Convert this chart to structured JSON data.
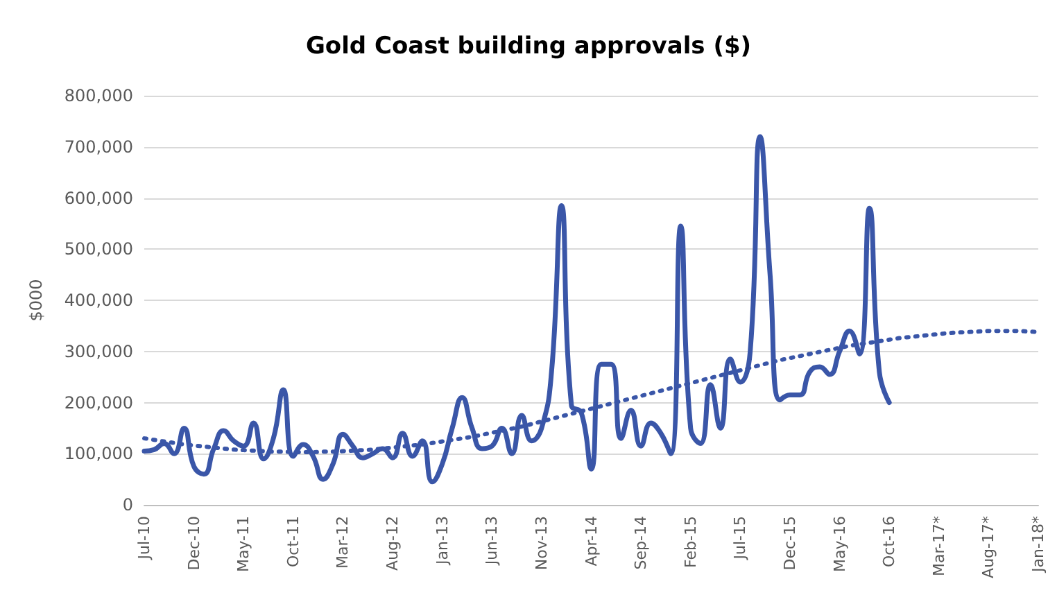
{
  "chart_data": {
    "type": "line",
    "title": "Gold Coast building approvals ($)",
    "ylabel": "$000",
    "categories": [
      "Jul-10",
      null,
      null,
      null,
      null,
      "Dec-10",
      null,
      null,
      null,
      null,
      "May-11",
      null,
      null,
      null,
      null,
      "Oct-11",
      null,
      null,
      null,
      null,
      "Mar-12",
      null,
      null,
      null,
      null,
      "Aug-12",
      null,
      null,
      null,
      null,
      "Jan-13",
      null,
      null,
      null,
      null,
      "Jun-13",
      null,
      null,
      null,
      null,
      "Nov-13",
      null,
      null,
      null,
      null,
      "Apr-14",
      null,
      null,
      null,
      null,
      "Sep-14",
      null,
      null,
      null,
      null,
      "Feb-15",
      null,
      null,
      null,
      null,
      "Jul-15",
      null,
      null,
      null,
      null,
      "Dec-15",
      null,
      null,
      null,
      null,
      "May-16",
      null,
      null,
      null,
      null,
      "Oct-16",
      null,
      null,
      null,
      null,
      "Mar-17*",
      null,
      null,
      null,
      null,
      "Aug-17*",
      null,
      null,
      null,
      null,
      "Jan-18*"
    ],
    "series": [
      {
        "color": "#3a56a8",
        "line_style": "solid",
        "values": [
          105000,
          108000,
          120000,
          100000,
          150000,
          75000,
          60000,
          110000,
          145000,
          125000,
          115000,
          160000,
          90000,
          130000,
          225000,
          95000,
          118000,
          95000,
          50000,
          80000,
          138000,
          115000,
          92000,
          100000,
          110000,
          92000,
          140000,
          95000,
          125000,
          45000,
          80000,
          150000,
          210000,
          150000,
          110000,
          115000,
          150000,
          100000,
          175000,
          125000,
          150000,
          260000,
          585000,
          195000,
          180000,
          70000,
          275000,
          275000,
          130000,
          185000,
          115000,
          160000,
          140000,
          100000,
          545000,
          150000,
          120000,
          235000,
          150000,
          285000,
          240000,
          300000,
          720000,
          450000,
          205000,
          215000,
          215000,
          260000,
          270000,
          255000,
          300000,
          340000,
          295000,
          580000,
          260000,
          200000,
          null,
          null,
          null,
          null,
          null,
          null,
          null,
          null,
          null,
          null,
          null,
          null,
          null,
          null,
          null
        ]
      },
      {
        "type": "line",
        "color": "#3a56a8",
        "line_style": "dotted",
        "values": [
          130000,
          127000,
          124000,
          121000,
          118000,
          116000,
          114000,
          112000,
          110000,
          108000,
          107000,
          106000,
          105000,
          104000,
          104000,
          103000,
          103000,
          103000,
          104000,
          104000,
          105000,
          106000,
          107000,
          108000,
          110000,
          112000,
          114000,
          116000,
          118000,
          121000,
          124000,
          127000,
          130000,
          133000,
          137000,
          141000,
          145000,
          149000,
          153000,
          158000,
          163000,
          168000,
          173000,
          178000,
          183000,
          188000,
          193000,
          198000,
          203000,
          208000,
          213000,
          218000,
          223000,
          228000,
          233000,
          238000,
          243000,
          248000,
          253000,
          258000,
          263000,
          268000,
          273000,
          278000,
          283000,
          287000,
          291000,
          295000,
          299000,
          303000,
          307000,
          311000,
          314000,
          317000,
          320000,
          323000,
          326000,
          328000,
          330000,
          332000,
          334000,
          336000,
          337000,
          338000,
          339000,
          340000,
          340000,
          340000,
          340000,
          339000,
          338000
        ]
      }
    ],
    "ylim": [
      0,
      800000
    ],
    "yticks": [
      0,
      {
        "value": 100000,
        "label": "100,000"
      },
      {
        "value": 200000,
        "label": "200,000"
      },
      {
        "value": 300000,
        "label": "300,000"
      },
      {
        "value": 400000,
        "label": "400,000"
      },
      {
        "value": 500000,
        "label": "500,000"
      },
      {
        "value": 600000,
        "label": "600,000"
      },
      {
        "value": 700000,
        "label": "700,000"
      },
      {
        "value": 800000,
        "label": "800,000"
      }
    ],
    "grid": "y",
    "marker": "none"
  }
}
